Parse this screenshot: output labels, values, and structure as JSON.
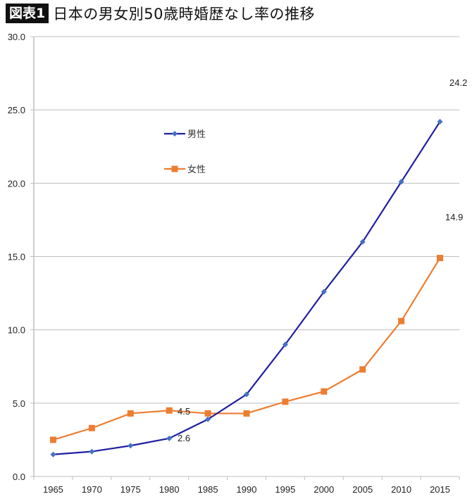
{
  "header": {
    "badge": "図表1",
    "title": "日本の男女別50歳時婚歴なし率の推移"
  },
  "colors": {
    "male_line": "#1f1fa0",
    "male_marker": "#4472c4",
    "female": "#ed7d31",
    "grid": "#bfbfbf",
    "axis": "#bfbfbf"
  },
  "chart_data": {
    "type": "line",
    "title": "日本の男女別50歳時婚歴なし率の推移",
    "xlabel": "",
    "ylabel": "",
    "categories": [
      "1965",
      "1970",
      "1975",
      "1980",
      "1985",
      "1990",
      "1995",
      "2000",
      "2005",
      "2010",
      "2015"
    ],
    "series": [
      {
        "name": "男性",
        "marker": "diamond",
        "values": [
          1.5,
          1.7,
          2.1,
          2.6,
          3.9,
          5.6,
          9.0,
          12.6,
          16.0,
          20.1,
          24.2
        ]
      },
      {
        "name": "女性",
        "marker": "square",
        "values": [
          2.5,
          3.3,
          4.3,
          4.5,
          4.3,
          4.3,
          5.1,
          5.8,
          7.3,
          10.6,
          14.9
        ]
      }
    ],
    "yticks": [
      "0.0",
      "5.0",
      "10.0",
      "15.0",
      "20.0",
      "25.0",
      "30.0"
    ],
    "ylim": [
      0,
      30
    ],
    "grid": true,
    "legend_position": "inside upper-left",
    "annotations": [
      {
        "text": "24.2",
        "series": "男性",
        "year": "2015"
      },
      {
        "text": "14.9",
        "series": "女性",
        "year": "2015"
      },
      {
        "text": "4.5",
        "series": "女性",
        "year": "1980"
      },
      {
        "text": "2.6",
        "series": "男性",
        "year": "1980"
      }
    ]
  }
}
